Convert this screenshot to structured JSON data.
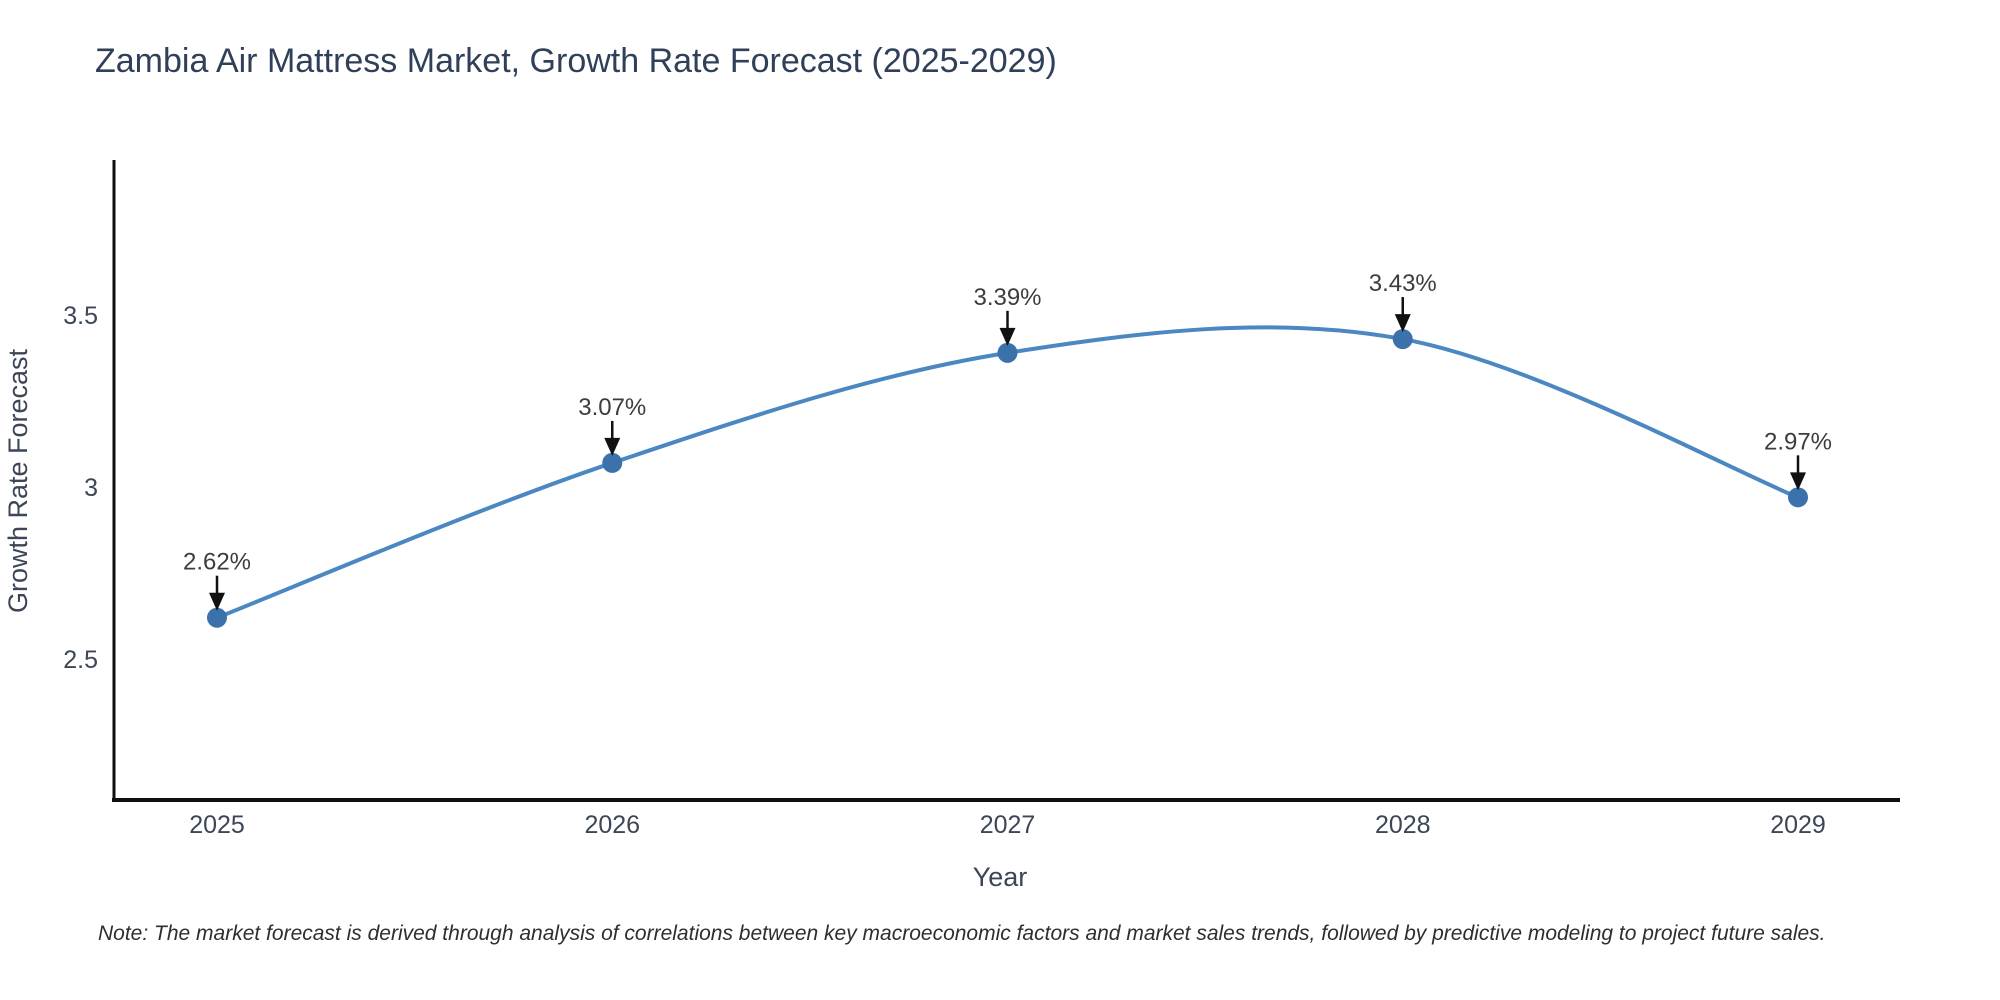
{
  "title": "Zambia Air Mattress Market, Growth Rate Forecast (2025-2029)",
  "note": "Note: The market forecast is derived through analysis of correlations between key macroeconomic factors and market sales trends, followed by predictive modeling to project future sales.",
  "chart_data": {
    "type": "line",
    "title": "Zambia Air Mattress Market, Growth Rate Forecast (2025-2029)",
    "xlabel": "Year",
    "ylabel": "Growth Rate Forecast",
    "categories": [
      "2025",
      "2026",
      "2027",
      "2028",
      "2029"
    ],
    "values": [
      2.62,
      3.07,
      3.39,
      3.43,
      2.97
    ],
    "point_labels": [
      "2.62%",
      "3.07%",
      "3.39%",
      "3.43%",
      "2.97%"
    ],
    "yticks": [
      {
        "value": 2.5,
        "label": "2.5"
      },
      {
        "value": 3.0,
        "label": "3"
      },
      {
        "value": 3.5,
        "label": "3.5"
      }
    ],
    "ylim": [
      2.08,
      3.95
    ],
    "grid": false,
    "legend": false,
    "smoothing": "spline",
    "line_color": "#4b87c1",
    "marker_color": "#3b72ac",
    "arrow_color": "#111111",
    "axis_color": "#0f0f0f"
  }
}
